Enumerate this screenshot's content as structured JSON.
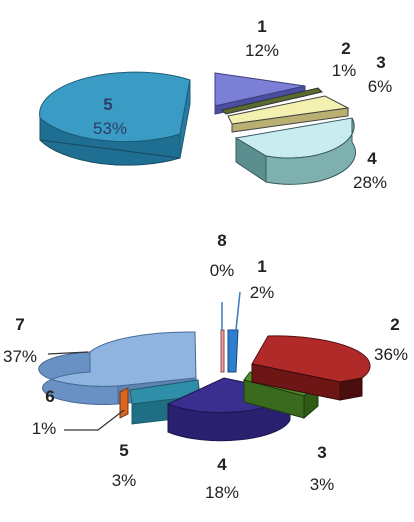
{
  "chart_data": [
    {
      "type": "pie",
      "style": "3d-exploded",
      "slices": [
        {
          "label": "1",
          "value": 12,
          "display": "12%",
          "color": "#7b7fd6"
        },
        {
          "label": "2",
          "value": 1,
          "display": "1%",
          "color": "#5b6a2f"
        },
        {
          "label": "3",
          "value": 6,
          "display": "6%",
          "color": "#f3f0b0"
        },
        {
          "label": "4",
          "value": 28,
          "display": "28%",
          "color": "#c8ecf0"
        },
        {
          "label": "5",
          "value": 53,
          "display": "53%",
          "color": "#3a9cc4"
        }
      ]
    },
    {
      "type": "pie",
      "style": "3d-exploded",
      "slices": [
        {
          "label": "1",
          "value": 2,
          "display": "2%",
          "color": "#2f7fd0"
        },
        {
          "label": "2",
          "value": 36,
          "display": "36%",
          "color": "#b02a2a"
        },
        {
          "label": "3",
          "value": 3,
          "display": "3%",
          "color": "#4f8f2a"
        },
        {
          "label": "4",
          "value": 18,
          "display": "18%",
          "color": "#3a2f8f"
        },
        {
          "label": "5",
          "value": 3,
          "display": "3%",
          "color": "#2f8fa8"
        },
        {
          "label": "6",
          "value": 1,
          "display": "1%",
          "color": "#d9651f"
        },
        {
          "label": "7",
          "value": 37,
          "display": "37%",
          "color": "#8fb4e0"
        },
        {
          "label": "8",
          "value": 0,
          "display": "0%",
          "color": "#e8a0a0"
        }
      ]
    }
  ]
}
